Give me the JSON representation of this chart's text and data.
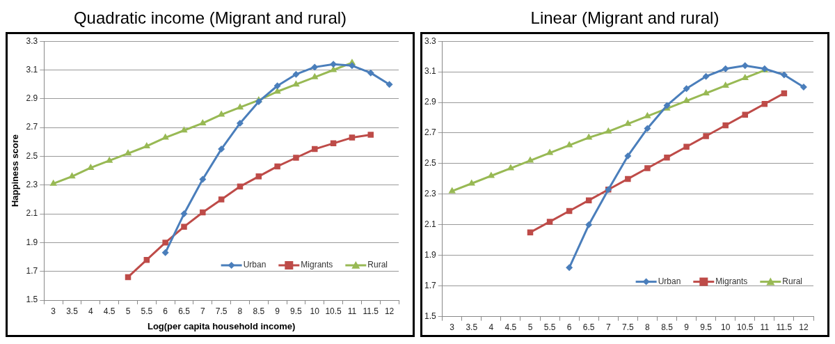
{
  "chart_data": [
    {
      "type": "line",
      "title": "Quadratic income (Migrant and rural)",
      "xlabel": "Log(per capita household income)",
      "ylabel": "Happiness score",
      "categories": [
        "3",
        "3.5",
        "4",
        "4.5",
        "5",
        "5.5",
        "6",
        "6.5",
        "7",
        "7.5",
        "8",
        "8.5",
        "9",
        "9.5",
        "10",
        "10.5",
        "11",
        "11.5",
        "12"
      ],
      "ylim": [
        1.5,
        3.3
      ],
      "yticks": [
        1.5,
        1.7,
        1.9,
        2.1,
        2.3,
        2.5,
        2.7,
        2.9,
        3.1,
        3.3
      ],
      "grid": "y",
      "legend": "bottom right",
      "line_style": "solid",
      "series": [
        {
          "name": "Urban",
          "color": "#4a7ebb",
          "marker": "diamond",
          "values": [
            null,
            null,
            null,
            null,
            null,
            null,
            1.83,
            2.1,
            2.34,
            2.55,
            2.73,
            2.88,
            2.99,
            3.07,
            3.12,
            3.14,
            3.13,
            3.08,
            3.0
          ]
        },
        {
          "name": "Migrants",
          "color": "#be4b48",
          "marker": "square",
          "values": [
            null,
            null,
            null,
            null,
            1.66,
            1.78,
            1.9,
            2.01,
            2.11,
            2.2,
            2.29,
            2.36,
            2.43,
            2.49,
            2.55,
            2.59,
            2.63,
            2.65,
            null
          ]
        },
        {
          "name": "Rural",
          "color": "#98b954",
          "marker": "triangle",
          "values": [
            2.31,
            2.36,
            2.42,
            2.47,
            2.52,
            2.57,
            2.63,
            2.68,
            2.73,
            2.79,
            2.84,
            2.89,
            2.95,
            3.0,
            3.05,
            3.1,
            3.15,
            null,
            null
          ]
        }
      ]
    },
    {
      "type": "line",
      "title": "Linear (Migrant and rural)",
      "categories": [
        "3",
        "3.5",
        "4",
        "4.5",
        "5",
        "5.5",
        "6",
        "6.5",
        "7",
        "7.5",
        "8",
        "8.5",
        "9",
        "9.5",
        "10",
        "10.5",
        "11",
        "11.5",
        "12"
      ],
      "ylim": [
        1.5,
        3.3
      ],
      "yticks": [
        1.5,
        1.7,
        1.9,
        2.1,
        2.3,
        2.5,
        2.7,
        2.9,
        3.1,
        3.3
      ],
      "grid": "y",
      "legend": "bottom right",
      "line_style": "solid",
      "series": [
        {
          "name": "Urban",
          "color": "#4a7ebb",
          "marker": "diamond",
          "values": [
            null,
            null,
            null,
            null,
            null,
            null,
            1.82,
            2.1,
            2.33,
            2.55,
            2.73,
            2.88,
            2.99,
            3.07,
            3.12,
            3.14,
            3.12,
            3.08,
            3.0
          ]
        },
        {
          "name": "Migrants",
          "color": "#be4b48",
          "marker": "square",
          "values": [
            null,
            null,
            null,
            null,
            2.05,
            2.12,
            2.19,
            2.26,
            2.33,
            2.4,
            2.47,
            2.54,
            2.61,
            2.68,
            2.75,
            2.82,
            2.89,
            2.96,
            null
          ]
        },
        {
          "name": "Rural",
          "color": "#98b954",
          "marker": "triangle",
          "values": [
            2.32,
            2.37,
            2.42,
            2.47,
            2.52,
            2.57,
            2.62,
            2.67,
            2.71,
            2.76,
            2.81,
            2.86,
            2.91,
            2.96,
            3.01,
            3.06,
            3.11,
            null,
            null
          ]
        }
      ]
    }
  ]
}
